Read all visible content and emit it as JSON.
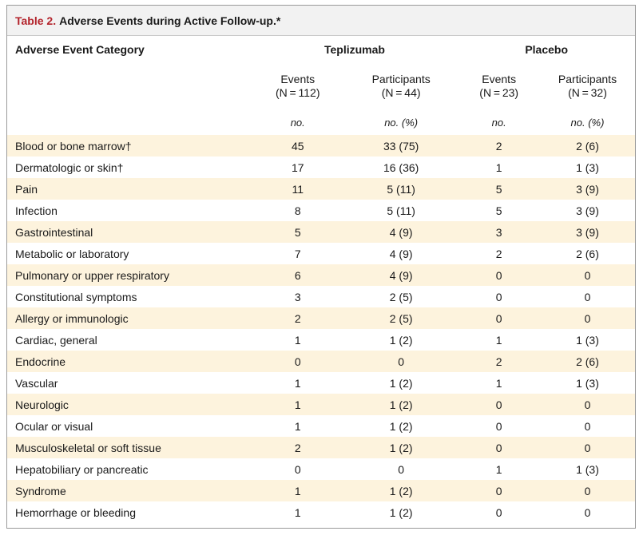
{
  "table": {
    "label": "Table 2.",
    "title": "Adverse Events during Active Follow-up.*",
    "category_header": "Adverse Event Category",
    "groups": [
      "Teplizumab",
      "Placebo"
    ],
    "subheaders": [
      {
        "line1": "Events",
        "line2": "(N = 112)"
      },
      {
        "line1": "Participants",
        "line2": "(N = 44)"
      },
      {
        "line1": "Events",
        "line2": "(N = 23)"
      },
      {
        "line1": "Participants",
        "line2": "(N = 32)"
      }
    ],
    "units": [
      "no.",
      "no. (%)",
      "no.",
      "no. (%)"
    ],
    "rows": [
      {
        "category": "Blood or bone marrow†",
        "values": [
          "45",
          "33 (75)",
          "2",
          "2 (6)"
        ]
      },
      {
        "category": "Dermatologic or skin†",
        "values": [
          "17",
          "16 (36)",
          "1",
          "1 (3)"
        ]
      },
      {
        "category": "Pain",
        "values": [
          "11",
          "5 (11)",
          "5",
          "3 (9)"
        ]
      },
      {
        "category": "Infection",
        "values": [
          "8",
          "5 (11)",
          "5",
          "3 (9)"
        ]
      },
      {
        "category": "Gastrointestinal",
        "values": [
          "5",
          "4 (9)",
          "3",
          "3 (9)"
        ]
      },
      {
        "category": "Metabolic or laboratory",
        "values": [
          "7",
          "4 (9)",
          "2",
          "2 (6)"
        ]
      },
      {
        "category": "Pulmonary or upper respiratory",
        "values": [
          "6",
          "4 (9)",
          "0",
          "0"
        ]
      },
      {
        "category": "Constitutional symptoms",
        "values": [
          "3",
          "2 (5)",
          "0",
          "0"
        ]
      },
      {
        "category": "Allergy or immunologic",
        "values": [
          "2",
          "2 (5)",
          "0",
          "0"
        ]
      },
      {
        "category": "Cardiac, general",
        "values": [
          "1",
          "1 (2)",
          "1",
          "1 (3)"
        ]
      },
      {
        "category": "Endocrine",
        "values": [
          "0",
          "0",
          "2",
          "2 (6)"
        ]
      },
      {
        "category": "Vascular",
        "values": [
          "1",
          "1 (2)",
          "1",
          "1 (3)"
        ]
      },
      {
        "category": "Neurologic",
        "values": [
          "1",
          "1 (2)",
          "0",
          "0"
        ]
      },
      {
        "category": "Ocular or visual",
        "values": [
          "1",
          "1 (2)",
          "0",
          "0"
        ]
      },
      {
        "category": "Musculoskeletal or soft tissue",
        "values": [
          "2",
          "1 (2)",
          "0",
          "0"
        ]
      },
      {
        "category": "Hepatobiliary or pancreatic",
        "values": [
          "0",
          "0",
          "1",
          "1 (3)"
        ]
      },
      {
        "category": "Syndrome",
        "values": [
          "1",
          "1 (2)",
          "0",
          "0"
        ]
      },
      {
        "category": "Hemorrhage or bleeding",
        "values": [
          "1",
          "1 (2)",
          "0",
          "0"
        ]
      }
    ],
    "colors": {
      "title_label": "#b3232b",
      "row_shade": "#fdf3dd",
      "title_bg": "#f2f2f2"
    }
  }
}
